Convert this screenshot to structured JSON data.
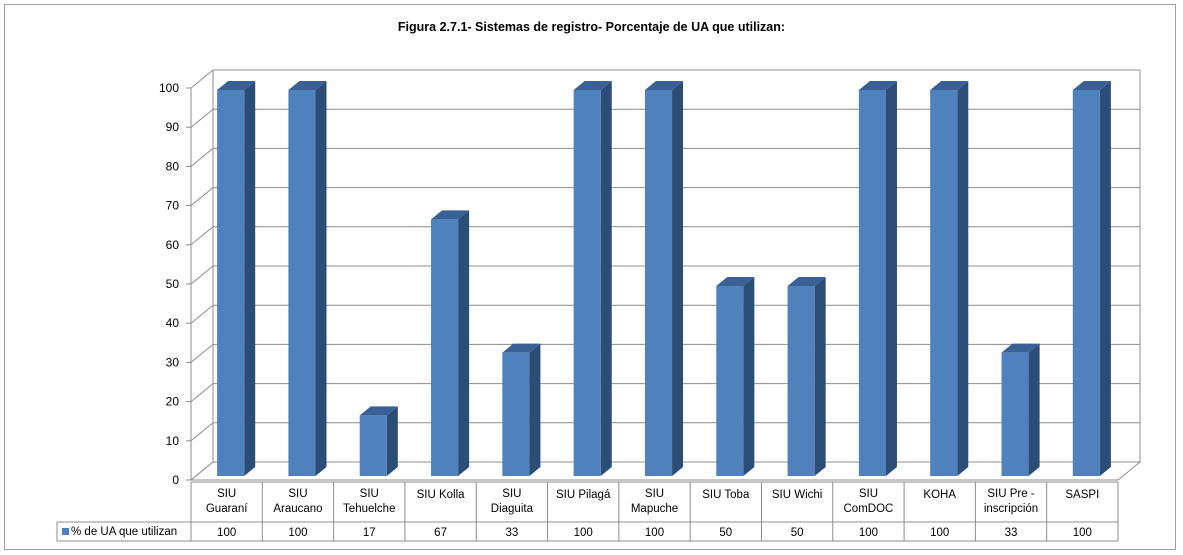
{
  "chart_data": {
    "type": "bar",
    "title": "Figura 2.7.1- Sistemas de registro- Porcentaje de UA que utilizan:",
    "categories": [
      [
        "SIU",
        "Guaraní"
      ],
      [
        "SIU",
        "Araucano"
      ],
      [
        "SIU",
        "Tehuelche"
      ],
      [
        "SIU Kolla"
      ],
      [
        "SIU",
        "Diaguita"
      ],
      [
        "SIU Pilagá"
      ],
      [
        "SIU",
        "Mapuche"
      ],
      [
        "SIU Toba"
      ],
      [
        "SIU Wichi"
      ],
      [
        "SIU",
        "ComDOC"
      ],
      [
        "KOHA"
      ],
      [
        "SIU Pre -",
        "inscripción"
      ],
      [
        "SASPI"
      ]
    ],
    "series": [
      {
        "name": "% de UA que utilizan",
        "values": [
          100,
          100,
          17,
          67,
          33,
          100,
          100,
          50,
          50,
          100,
          100,
          33,
          100
        ],
        "color": "#4f81bd"
      }
    ],
    "table_values": [
      "100",
      "100",
      "17",
      "67",
      "33",
      "100",
      "100",
      "50",
      "50",
      "100",
      "100",
      "33",
      "100"
    ],
    "ylim": [
      0,
      100
    ],
    "yticks": [
      "0",
      "10",
      "20",
      "30",
      "40",
      "50",
      "60",
      "70",
      "80",
      "90",
      "100"
    ],
    "grid": true,
    "legend": "data-table",
    "colors": {
      "bar_front": "#4f81bd",
      "bar_side": "#2c4d75",
      "bar_top": "#3a6196"
    }
  }
}
